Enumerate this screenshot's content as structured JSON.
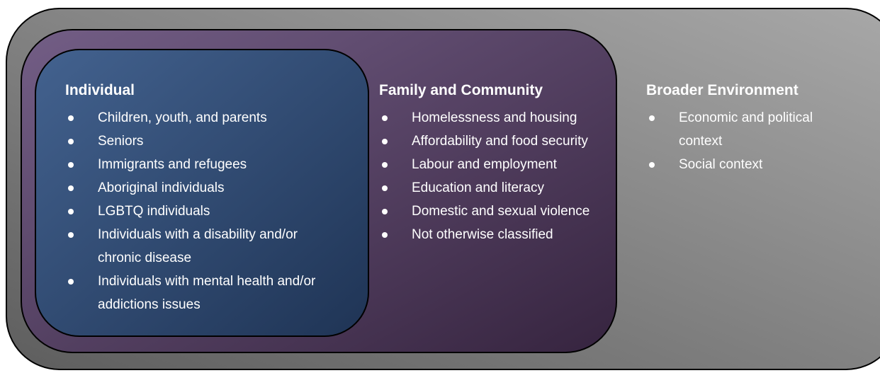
{
  "sections": [
    {
      "title": "Individual",
      "items": [
        "Children, youth, and parents",
        "Seniors",
        "Immigrants and refugees",
        "Aboriginal individuals",
        "LGBTQ individuals",
        "Individuals with a disability and/or chronic disease",
        "Individuals with mental health and/or addictions issues"
      ]
    },
    {
      "title": "Family and Community",
      "items": [
        "Homelessness and housing",
        "Affordability and food security",
        "Labour and employment",
        "Education and literacy",
        "Domestic and sexual violence",
        "Not otherwise classified"
      ]
    },
    {
      "title": "Broader Environment",
      "items": [
        "Economic and political context",
        "Social context"
      ]
    }
  ]
}
